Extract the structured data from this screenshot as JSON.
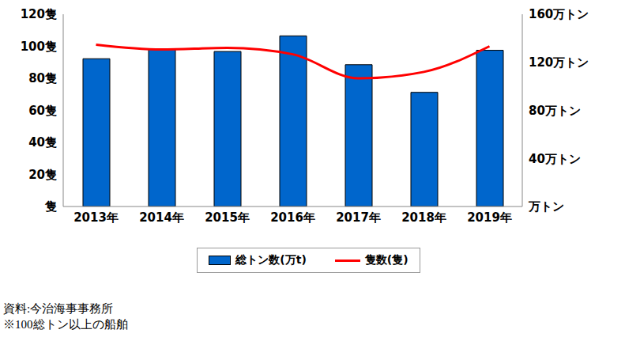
{
  "chart_data": {
    "type": "bar",
    "categories": [
      "2013年",
      "2014年",
      "2015年",
      "2016年",
      "2017年",
      "2018年",
      "2019年"
    ],
    "series": [
      {
        "name": "総トン数(万t)",
        "type": "bar",
        "color": "#0066cc",
        "axis": "y2",
        "values": [
          123,
          131,
          129,
          142,
          118,
          95,
          130
        ]
      },
      {
        "name": "隻数(隻)",
        "type": "line",
        "color": "#ff0000",
        "axis": "y",
        "line_style": "smooth",
        "marker": "none",
        "values": [
          101,
          98,
          99,
          95,
          80,
          84,
          100
        ]
      }
    ],
    "ylim": [
      0,
      120
    ],
    "yticks": [
      {
        "value": 0,
        "label": "隻"
      },
      {
        "value": 20,
        "label": "20隻"
      },
      {
        "value": 40,
        "label": "40隻"
      },
      {
        "value": 60,
        "label": "60隻"
      },
      {
        "value": 80,
        "label": "80隻"
      },
      {
        "value": 100,
        "label": "100隻"
      },
      {
        "value": 120,
        "label": "120隻"
      }
    ],
    "y2lim": [
      0,
      160
    ],
    "y2ticks": [
      {
        "value": 0,
        "label": "万トン"
      },
      {
        "value": 40,
        "label": "40万トン"
      },
      {
        "value": 80,
        "label": "80万トン"
      },
      {
        "value": 120,
        "label": "120万トン"
      },
      {
        "value": 160,
        "label": "160万トン"
      }
    ],
    "grid": false,
    "legend": "bottom",
    "annotations": [
      "資料:今治海事事務所",
      "※100総トン以上の船舶"
    ]
  }
}
